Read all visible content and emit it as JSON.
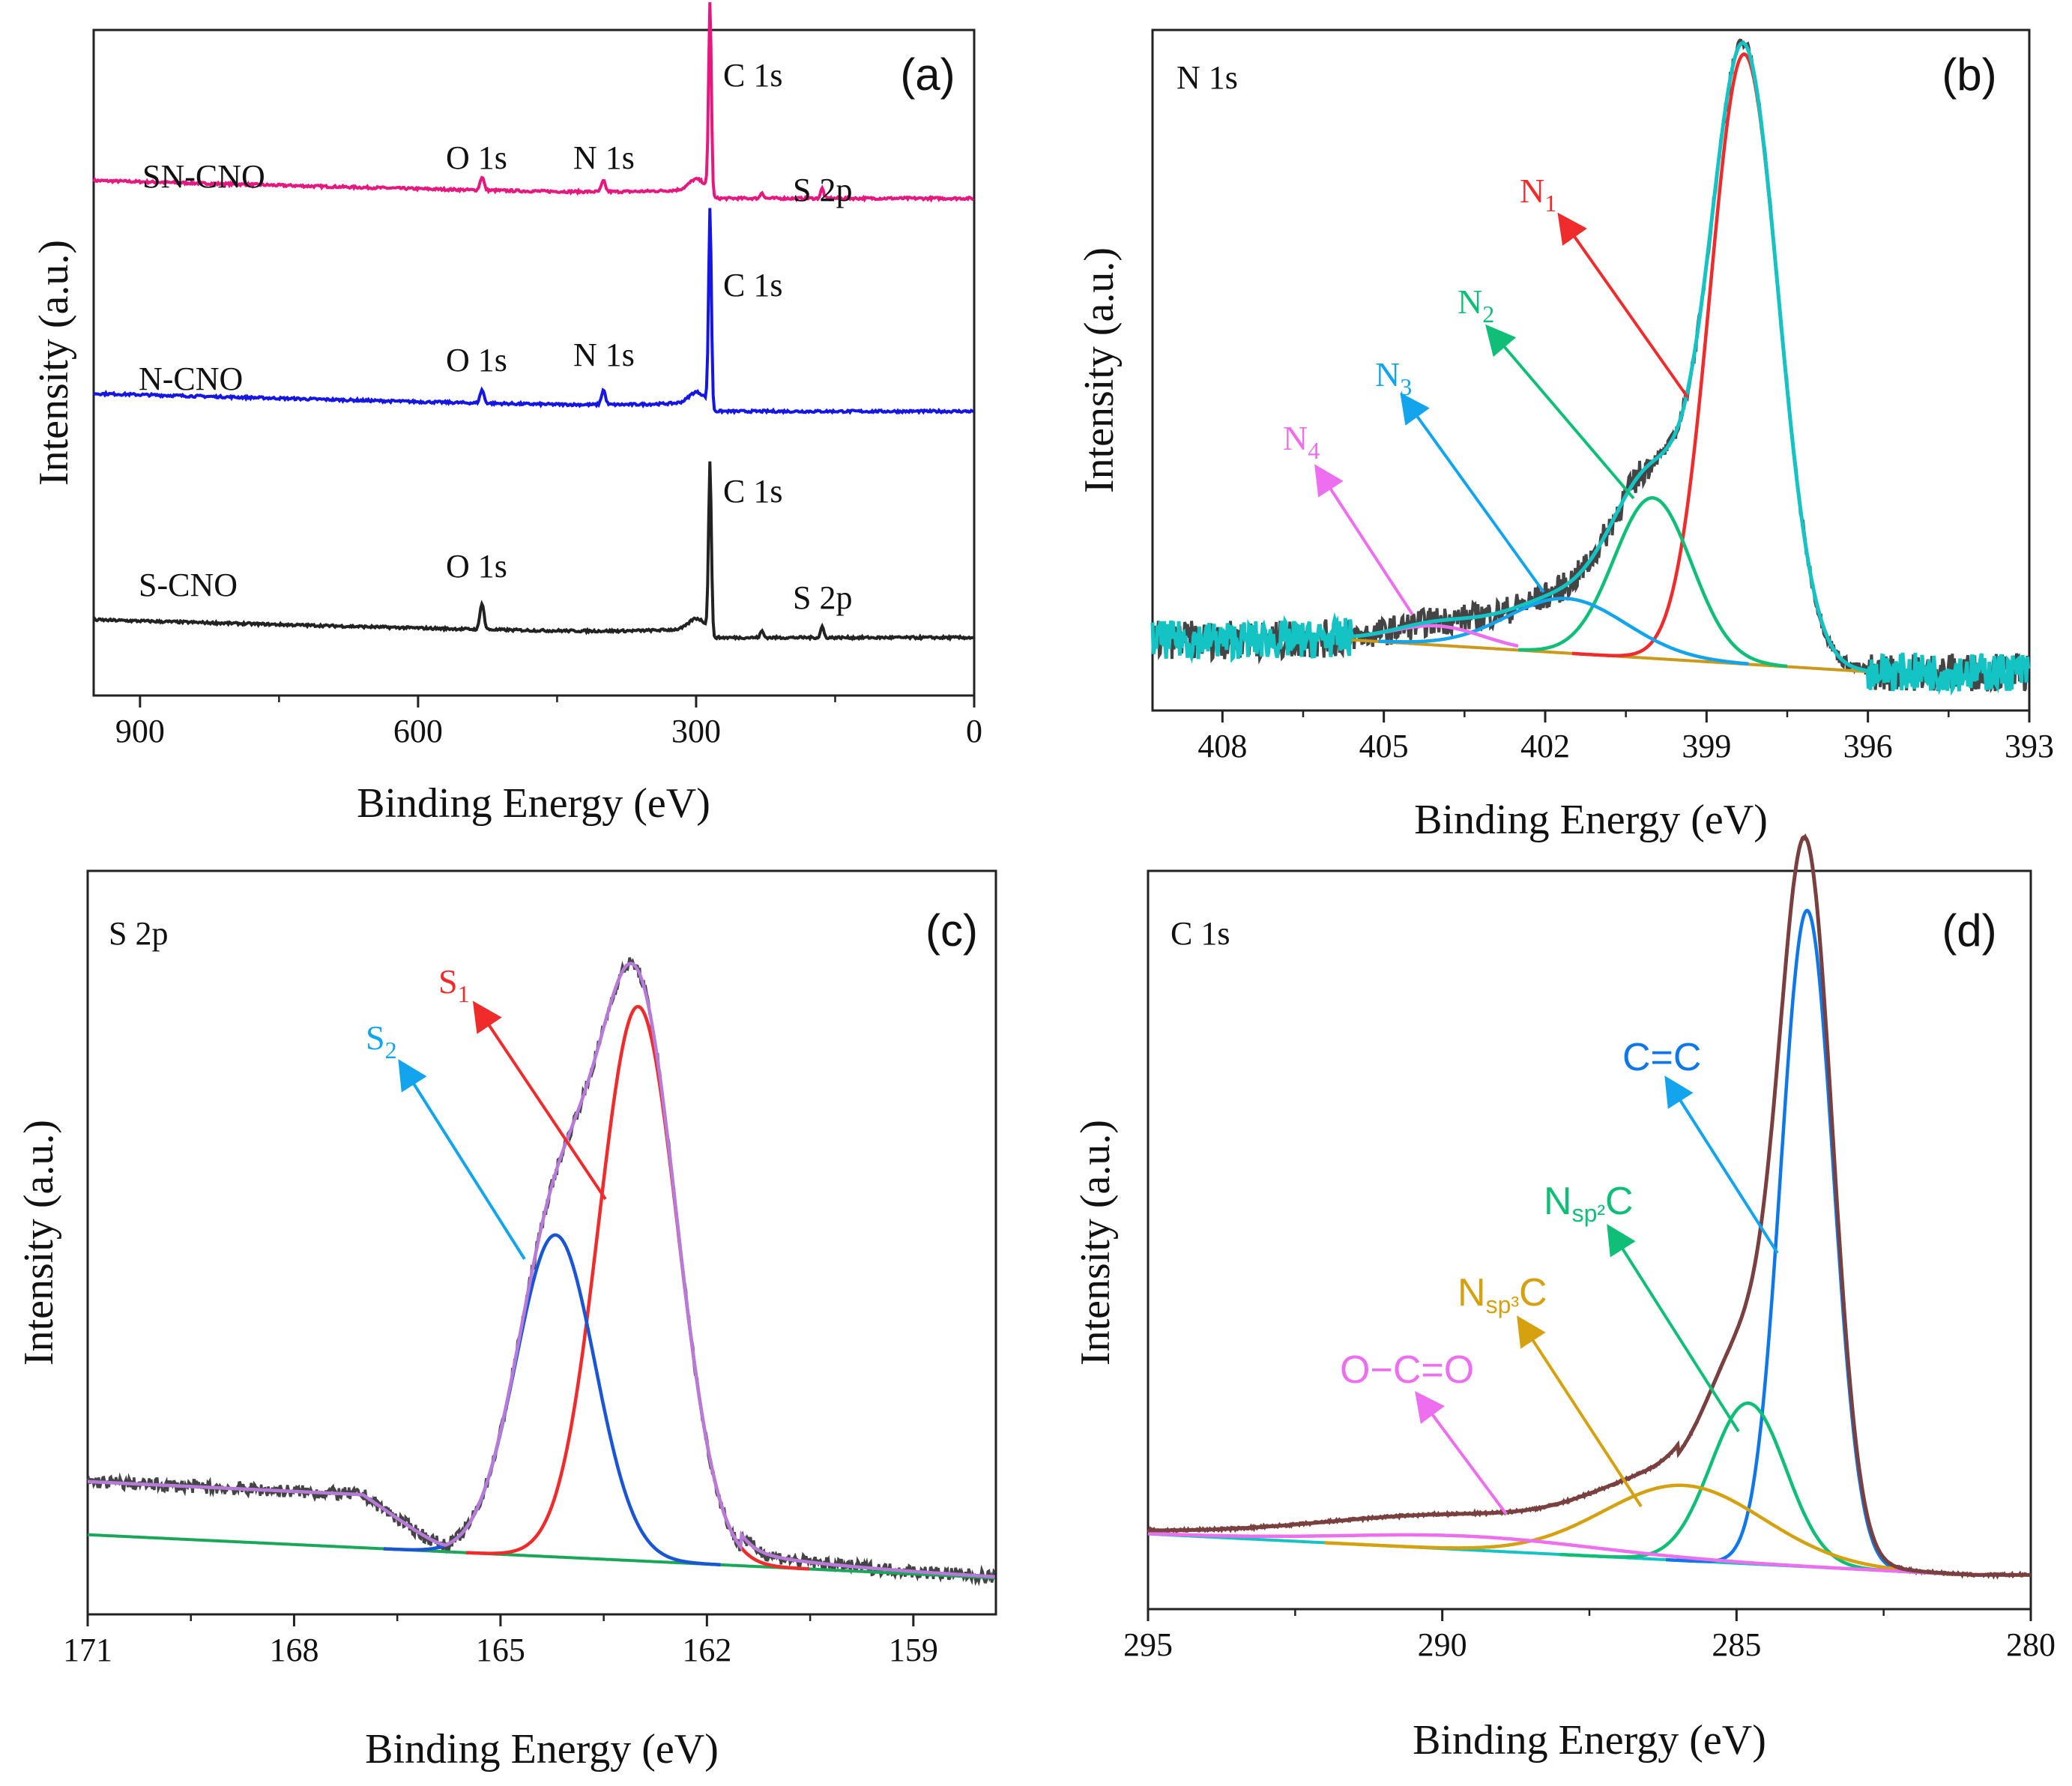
{
  "colors": {
    "black": "#222222",
    "magenta": "#e8167f",
    "blue": "#1515e6",
    "red": "#ef2b2b",
    "green": "#0fbf77",
    "sky": "#12a5ee",
    "pink": "#ee6ef0",
    "orange": "#d6a10f",
    "teal": "#14c4c4",
    "brown": "#7a3f3f",
    "navy": "#1a55d6",
    "lav": "#b77ad9",
    "bg_line": "#18a857",
    "fit_gray": "#444444",
    "cc": "#0e77ea",
    "baseline_b": "#cc9a1a"
  },
  "chart_data": [
    {
      "panel": "a",
      "tag": "(a)",
      "type": "line",
      "xlabel": "Binding Energy (eV)",
      "ylabel": "Intensity (a.u.)",
      "xlim": [
        950,
        0
      ],
      "ylim": [
        0,
        100
      ],
      "x_ticks": [
        900,
        600,
        300,
        0
      ],
      "x_tick_labels": [
        "900",
        "600",
        "300",
        "0"
      ],
      "series": [
        {
          "name": "SN-CNO",
          "color": "magenta",
          "baseline": 75,
          "slope": 0.0036,
          "peaks": [
            {
              "x": 531,
              "h": 2.0,
              "w": 2.5
            },
            {
              "x": 400,
              "h": 1.6,
              "w": 2.5
            },
            {
              "x": 285,
              "h": 28,
              "w": 1.8
            },
            {
              "x": 229,
              "h": 0.9,
              "w": 2
            },
            {
              "x": 164,
              "h": 1.5,
              "w": 2
            }
          ],
          "shoulder": {
            "x": 300,
            "h": 1.5,
            "w": 9
          }
        },
        {
          "name": "N-CNO",
          "color": "blue",
          "baseline": 43,
          "slope": 0.0036,
          "peaks": [
            {
              "x": 531,
              "h": 2.0,
              "w": 2.5
            },
            {
              "x": 400,
              "h": 2.2,
              "w": 2.5
            },
            {
              "x": 285,
              "h": 29,
              "w": 1.8
            }
          ],
          "shoulder": {
            "x": 300,
            "h": 1.5,
            "w": 9
          }
        },
        {
          "name": "S-CNO",
          "color": "black",
          "baseline": 9,
          "slope": 0.0036,
          "peaks": [
            {
              "x": 531,
              "h": 4.0,
              "w": 2.5
            },
            {
              "x": 285,
              "h": 25,
              "w": 1.8
            },
            {
              "x": 229,
              "h": 1.0,
              "w": 2
            },
            {
              "x": 164,
              "h": 1.7,
              "w": 2
            }
          ],
          "shoulder": {
            "x": 300,
            "h": 1.5,
            "w": 9
          }
        }
      ],
      "labels": [
        {
          "text": "SN-CNO",
          "color": "magenta"
        },
        {
          "text": "O 1s",
          "color": "magenta"
        },
        {
          "text": "N 1s",
          "color": "magenta"
        },
        {
          "text": "C 1s",
          "color": "magenta"
        },
        {
          "text": "S 2p",
          "color": "magenta"
        },
        {
          "text": "N-CNO",
          "color": "blue"
        },
        {
          "text": "O 1s",
          "color": "blue"
        },
        {
          "text": "N 1s",
          "color": "blue"
        },
        {
          "text": "C 1s",
          "color": "blue"
        },
        {
          "text": "S-CNO",
          "color": "black"
        },
        {
          "text": "O 1s",
          "color": "black"
        },
        {
          "text": "C 1s",
          "color": "black"
        },
        {
          "text": "S 2p",
          "color": "black"
        }
      ]
    },
    {
      "panel": "b",
      "tag": "(b)",
      "type": "line",
      "title": "N 1s",
      "xlabel": "Binding Energy (eV)",
      "ylabel": "Intensity (a.u.)",
      "xlim": [
        409.3,
        393
      ],
      "ylim": [
        -0.06,
        1.0
      ],
      "x_ticks": [
        408,
        405,
        402,
        399,
        396,
        393
      ],
      "x_tick_labels": [
        "408",
        "405",
        "402",
        "399",
        "396",
        "393"
      ],
      "background": {
        "x_range": [
          405.6,
          395.9
        ],
        "y_start": 0.05,
        "y_end": 0.0,
        "color": "baseline_b"
      },
      "series": [
        {
          "name": "N1",
          "label": "N",
          "sub": "1",
          "color": "red",
          "center": 398.3,
          "height": 0.95,
          "fwhm": 1.5,
          "x_range": [
            401.5,
            396.1
          ]
        },
        {
          "name": "N2",
          "label": "N",
          "sub": "2",
          "color": "green",
          "center": 400.0,
          "height": 0.25,
          "fwhm": 1.7,
          "x_range": [
            402.5,
            397.5
          ]
        },
        {
          "name": "N3",
          "label": "N",
          "sub": "3",
          "color": "sky",
          "center": 401.6,
          "height": 0.085,
          "fwhm": 2.6,
          "x_range": [
            405.1,
            398.2
          ]
        },
        {
          "name": "N4",
          "label": "N",
          "sub": "4",
          "color": "pink",
          "center": 404.0,
          "height": 0.03,
          "fwhm": 2.0,
          "x_range": [
            405.6,
            402.5
          ]
        }
      ],
      "raw_color": "fit_gray",
      "fit_color": "teal"
    },
    {
      "panel": "c",
      "tag": "(c)",
      "type": "line",
      "title": "S 2p",
      "xlabel": "Binding Energy (eV)",
      "ylabel": "Intensity (a.u.)",
      "xlim": [
        171,
        157.8
      ],
      "ylim": [
        -0.12,
        1.0
      ],
      "x_ticks": [
        171,
        168,
        165,
        162,
        159
      ],
      "x_tick_labels": [
        "171",
        "168",
        "165",
        "162",
        "159"
      ],
      "background": {
        "x_range": [
          171,
          157.8
        ],
        "y_start": 0.0,
        "y_end": -0.065,
        "color": "bg_line"
      },
      "series": [
        {
          "name": "S1",
          "label": "S",
          "sub": "1",
          "color": "red",
          "center": 163.0,
          "height": 0.835,
          "fwhm": 1.35,
          "x_range": [
            165.5,
            160.5
          ]
        },
        {
          "name": "S2",
          "label": "S",
          "sub": "2",
          "color": "navy",
          "center": 164.2,
          "height": 0.485,
          "fwhm": 1.35,
          "x_range": [
            166.7,
            161.8
          ]
        }
      ],
      "raw_color": "fit_gray",
      "fit_color": "lav"
    },
    {
      "panel": "d",
      "tag": "(d)",
      "type": "line",
      "title": "C 1s",
      "xlabel": "Binding Energy (eV)",
      "ylabel": "Intensity (a.u.)",
      "xlim": [
        295,
        280
      ],
      "ylim": [
        -0.08,
        1.0
      ],
      "x_ticks": [
        295,
        290,
        285,
        280
      ],
      "x_tick_labels": [
        "295",
        "290",
        "285",
        "280"
      ],
      "background": {
        "x_range": [
          295,
          281
        ],
        "y_start": 0.03,
        "y_end": -0.03,
        "color": "teal"
      },
      "series": [
        {
          "name": "C=C",
          "label": "C=C",
          "color": "cc",
          "center": 283.8,
          "height": 0.96,
          "fwhm": 1.05,
          "x_range": [
            286.2,
            282
          ]
        },
        {
          "name": "Nsp2C",
          "label": "N",
          "sub": "sp²",
          "suffix": "C",
          "color": "green",
          "center": 284.8,
          "height": 0.235,
          "fwhm": 1.5,
          "x_range": [
            288,
            281.5
          ]
        },
        {
          "name": "Nsp3C",
          "label": "N",
          "sub": "sp³",
          "suffix": "C",
          "color": "orange",
          "center": 285.9,
          "height": 0.11,
          "fwhm": 3.2,
          "x_range": [
            292,
            281
          ]
        },
        {
          "name": "O-C=O",
          "label": "O−C=O",
          "color": "pink",
          "center": 289.5,
          "height": 0.02,
          "fwhm": 5,
          "x_range": [
            295,
            281.5
          ]
        }
      ],
      "raw_color": "brown",
      "fit_color": "brown"
    }
  ]
}
